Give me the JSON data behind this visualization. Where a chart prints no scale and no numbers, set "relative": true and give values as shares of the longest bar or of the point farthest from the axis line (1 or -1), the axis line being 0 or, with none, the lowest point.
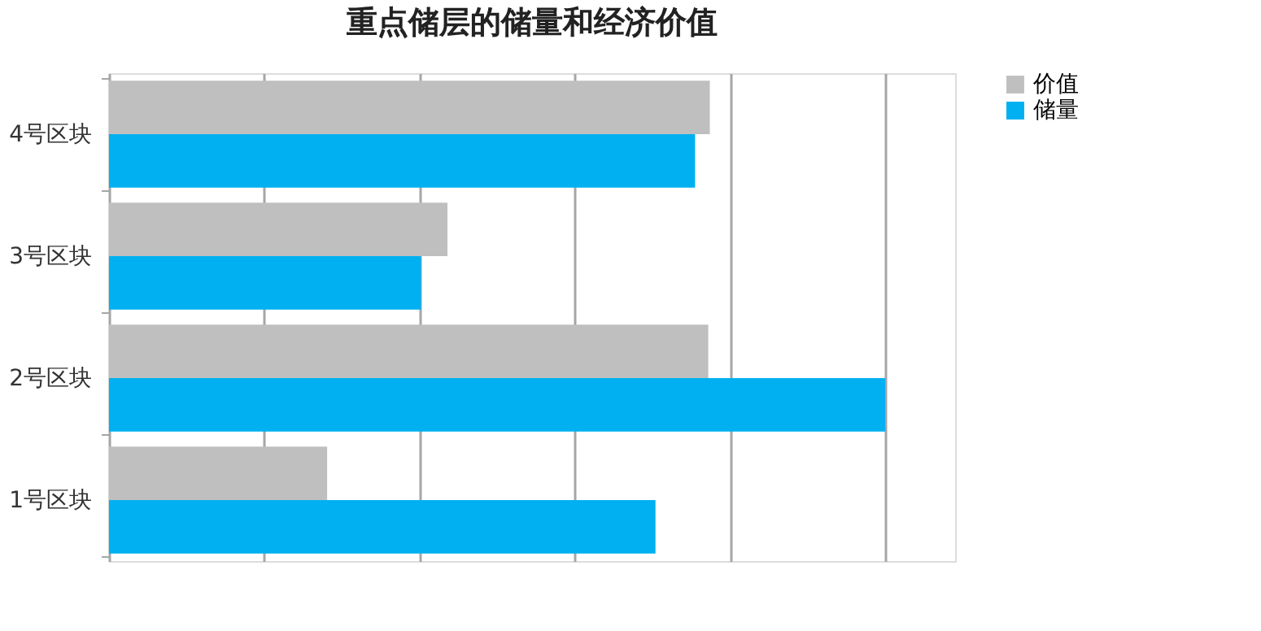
{
  "chart_data": {
    "type": "bar",
    "orientation": "horizontal",
    "relative": true,
    "title": "重点储层的储量和经济价值",
    "categories": [
      "4号区块",
      "3号区块",
      "2号区块",
      "1号区块"
    ],
    "series": [
      {
        "name": "价值",
        "color": "#bfbfbf",
        "values": [
          0.774,
          0.436,
          0.772,
          0.281
        ]
      },
      {
        "name": "储量",
        "color": "#00b0f0",
        "values": [
          0.755,
          0.402,
          1,
          0.704
        ]
      }
    ],
    "grid": "x",
    "legend": "right"
  }
}
